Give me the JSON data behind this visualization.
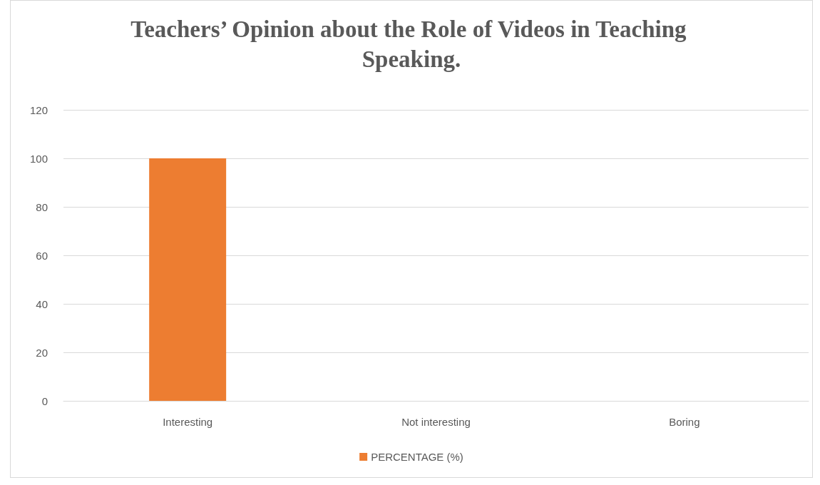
{
  "chart_data": {
    "type": "bar",
    "title": "Teachers’ Opinion about the Role of Videos in Teaching Speaking.",
    "categories": [
      "Interesting",
      "Not interesting",
      "Boring"
    ],
    "series": [
      {
        "name": "PERCENTAGE (%)",
        "color": "#ed7d31",
        "values": [
          100,
          0,
          0
        ]
      }
    ],
    "ylim": [
      0,
      120
    ],
    "yticks": [
      0,
      20,
      40,
      60,
      80,
      100,
      120
    ],
    "grid": "y",
    "legend": "bottom"
  }
}
